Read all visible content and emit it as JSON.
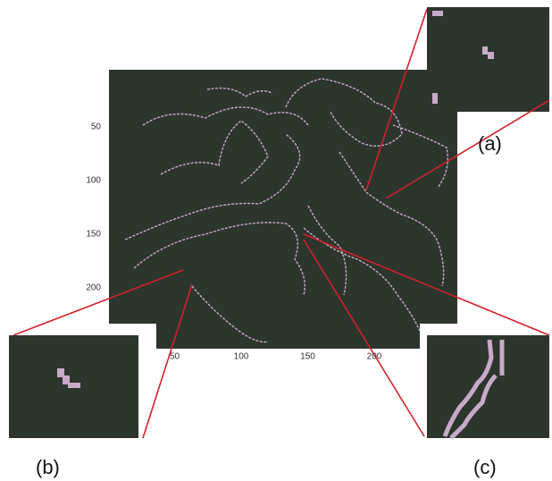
{
  "main_image": {
    "yticks": [
      50,
      100,
      150,
      200
    ],
    "xticks": [
      50,
      100,
      150,
      200
    ]
  },
  "insets": [
    {
      "label": "(a)"
    },
    {
      "label": "(b)"
    },
    {
      "label": "(c)"
    }
  ]
}
